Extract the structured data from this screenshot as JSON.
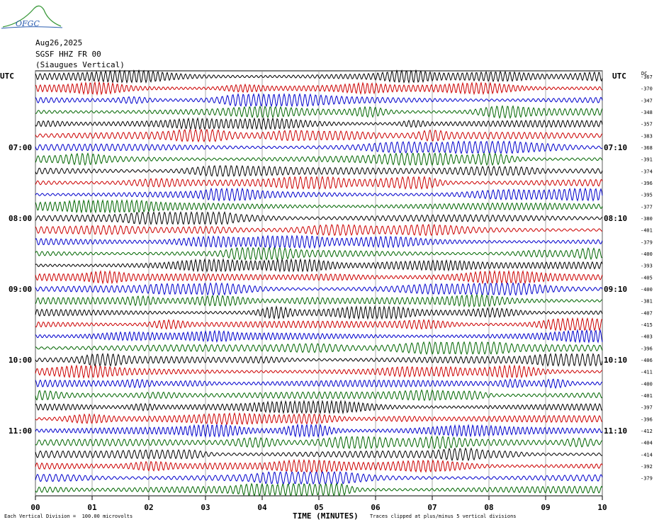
{
  "header": {
    "logo_text": "OFGC",
    "date": "Aug26,2025",
    "station": "SGSF HHZ FR 00",
    "location": "(Siaugues Vertical)"
  },
  "colors": {
    "traces": [
      "#000000",
      "#cc0000",
      "#0000cc",
      "#006600"
    ],
    "logo_green": "#3c9a3c",
    "logo_blue": "#2a5db0",
    "grid": "#888888"
  },
  "chart_data": {
    "type": "line",
    "title": "",
    "xlabel": "TIME (MINUTES)",
    "xlim": [
      0,
      10
    ],
    "x_ticks": [
      "00",
      "01",
      "02",
      "03",
      "04",
      "05",
      "06",
      "07",
      "08",
      "09",
      "10"
    ],
    "left_axis_label": "UTC",
    "right_axis_label": "UTC",
    "dc_label": "DC",
    "left_time_labels": [
      {
        "row": 6,
        "label": "07:00"
      },
      {
        "row": 12,
        "label": "08:00"
      },
      {
        "row": 18,
        "label": "09:00"
      },
      {
        "row": 24,
        "label": "10:00"
      },
      {
        "row": 30,
        "label": "11:00"
      }
    ],
    "right_time_labels": [
      {
        "row": 6,
        "label": "07:10"
      },
      {
        "row": 12,
        "label": "08:10"
      },
      {
        "row": 18,
        "label": "09:10"
      },
      {
        "row": 24,
        "label": "10:10"
      },
      {
        "row": 30,
        "label": "11:10"
      }
    ],
    "rows": 36,
    "dc_offsets": [
      -367,
      -370,
      -347,
      -348,
      -357,
      -383,
      -368,
      -391,
      -374,
      -396,
      -395,
      -377,
      -380,
      -401,
      -379,
      -400,
      -393,
      -405,
      -400,
      -381,
      -407,
      -415,
      -403,
      -396,
      -406,
      -411,
      -400,
      -401,
      -397,
      -396,
      -412,
      -404,
      -414,
      -392,
      -379
    ],
    "trace_color_cycle": [
      "black",
      "red",
      "blue",
      "green"
    ],
    "clip_divisions": 5,
    "vertical_division_microvolts": 100.0
  },
  "footer": {
    "scale_note": "Each Vertical Division =  100.00 microvolts",
    "clip_note": "Traces clipped at plus/minus 5 vertical divisions"
  }
}
